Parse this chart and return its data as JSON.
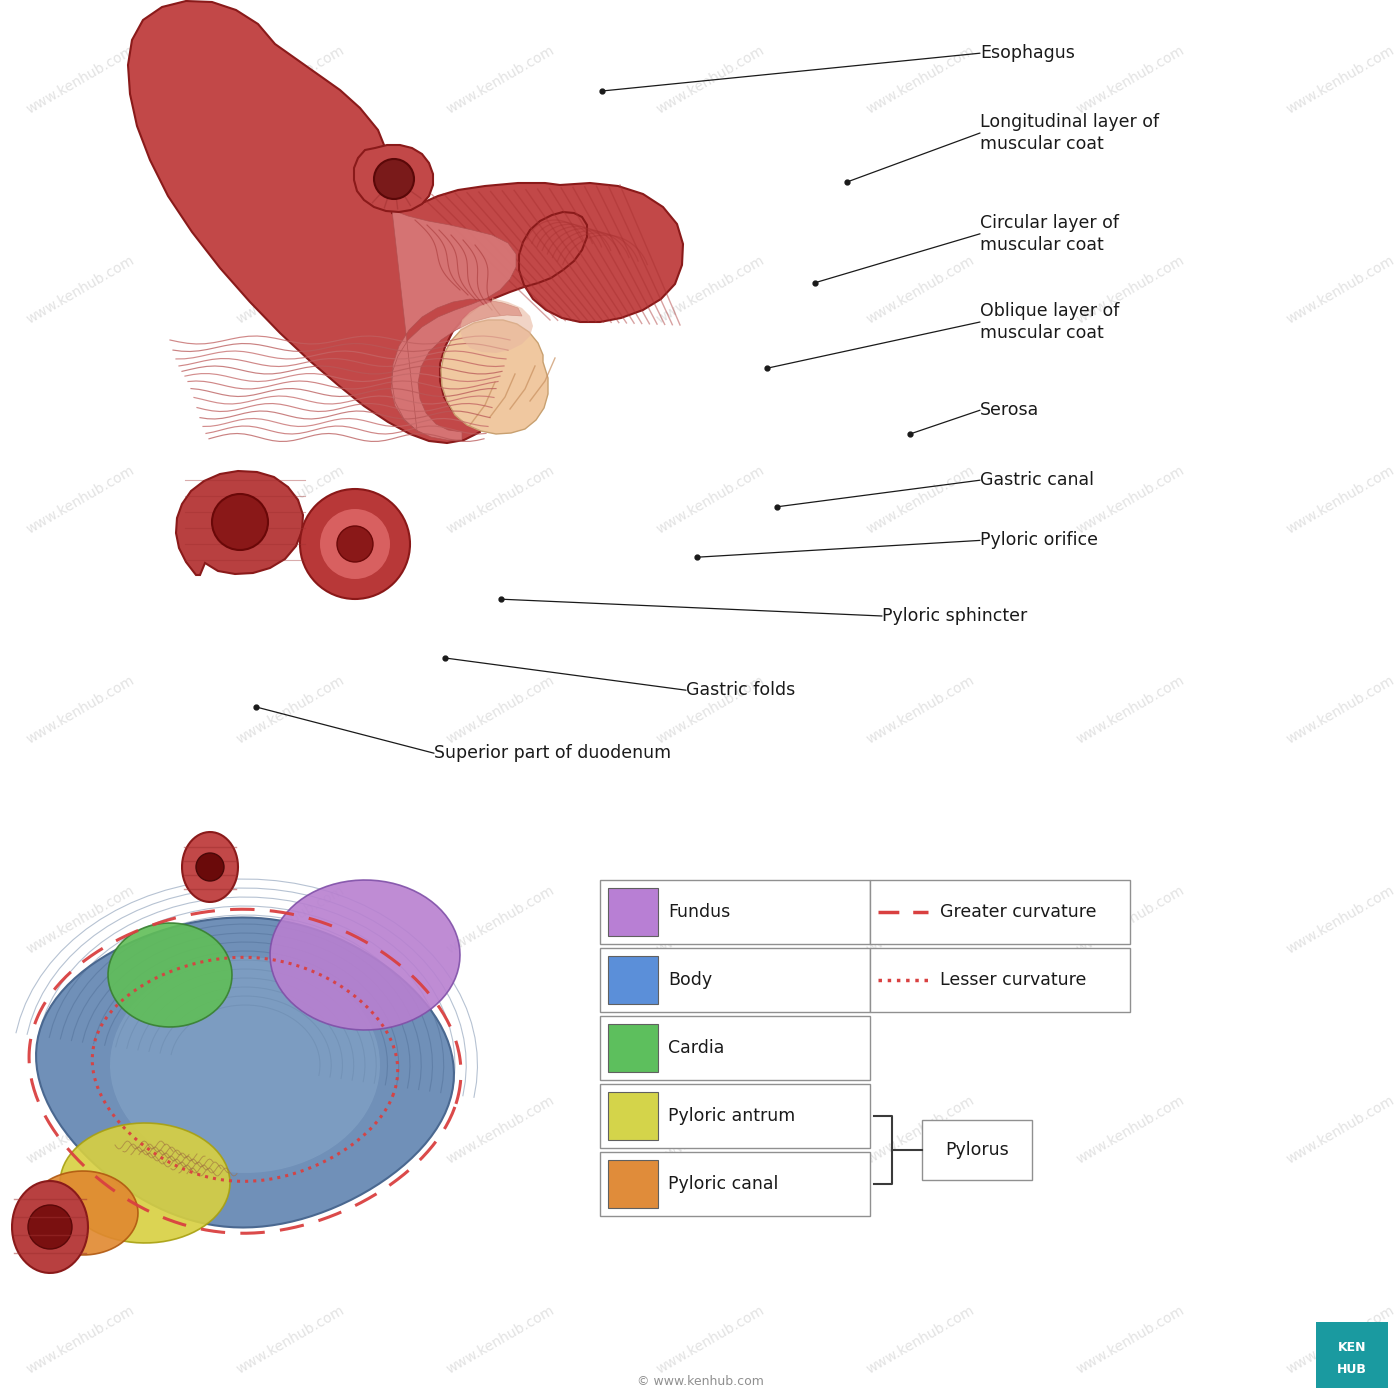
{
  "background_color": "#ffffff",
  "kenhub_box_color": "#1a9aa0",
  "upper_annotations": [
    {
      "label": "Esophagus",
      "dot": [
        0.43,
        0.935
      ],
      "text": [
        0.7,
        0.962
      ]
    },
    {
      "label": "Longitudinal layer of\nmuscular coat",
      "dot": [
        0.605,
        0.87
      ],
      "text": [
        0.7,
        0.905
      ]
    },
    {
      "label": "Circular layer of\nmuscular coat",
      "dot": [
        0.582,
        0.798
      ],
      "text": [
        0.7,
        0.833
      ]
    },
    {
      "label": "Oblique layer of\nmuscular coat",
      "dot": [
        0.548,
        0.737
      ],
      "text": [
        0.7,
        0.77
      ]
    },
    {
      "label": "Serosa",
      "dot": [
        0.65,
        0.69
      ],
      "text": [
        0.7,
        0.707
      ]
    },
    {
      "label": "Gastric canal",
      "dot": [
        0.555,
        0.638
      ],
      "text": [
        0.7,
        0.657
      ]
    },
    {
      "label": "Pyloric orifice",
      "dot": [
        0.498,
        0.602
      ],
      "text": [
        0.7,
        0.614
      ]
    },
    {
      "label": "Pyloric sphincter",
      "dot": [
        0.358,
        0.572
      ],
      "text": [
        0.63,
        0.56
      ]
    },
    {
      "label": "Gastric folds",
      "dot": [
        0.318,
        0.53
      ],
      "text": [
        0.49,
        0.507
      ]
    },
    {
      "label": "Superior part of duodenum",
      "dot": [
        0.183,
        0.495
      ],
      "text": [
        0.31,
        0.462
      ]
    }
  ],
  "legend_color_items": [
    {
      "color": "#b87fd4",
      "label": "Fundus"
    },
    {
      "color": "#5b8fd9",
      "label": "Body"
    },
    {
      "color": "#5dbf5d",
      "label": "Cardia"
    },
    {
      "color": "#d4d44a",
      "label": "Pyloric antrum"
    },
    {
      "color": "#e08c3a",
      "label": "Pyloric canal"
    }
  ],
  "legend_line_items": [
    {
      "style": "dashed",
      "color": "#d94040",
      "label": "Greater curvature"
    },
    {
      "style": "dotted",
      "color": "#d94040",
      "label": "Lesser curvature"
    }
  ],
  "pylorus_label": "Pylorus"
}
